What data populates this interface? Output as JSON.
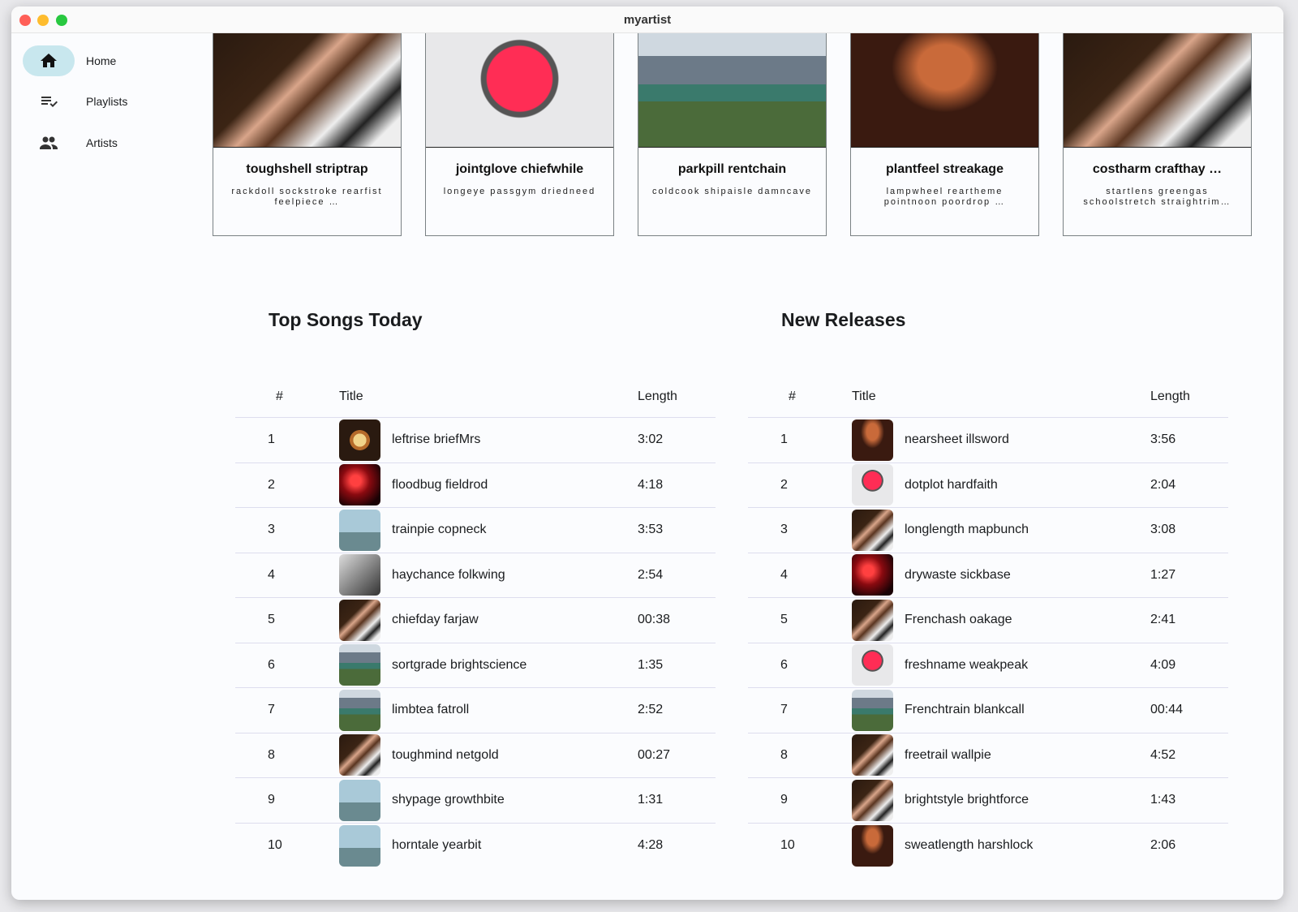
{
  "window": {
    "title": "myartist"
  },
  "sidebar": {
    "items": [
      {
        "label": "Home",
        "icon": "home-icon",
        "active": true
      },
      {
        "label": "Playlists",
        "icon": "playlist-check-icon"
      },
      {
        "label": "Artists",
        "icon": "people-icon"
      }
    ]
  },
  "cards": [
    {
      "title": "toughshell striptrap",
      "subtitle": "rackdoll sockstroke rearfist feelpiece …",
      "image": "piano"
    },
    {
      "title": "jointglove chiefwhile",
      "subtitle": "longeye passgym driedneed",
      "image": "heart"
    },
    {
      "title": "parkpill rentchain",
      "subtitle": "coldcook shipaisle damncave",
      "image": "city"
    },
    {
      "title": "plantfeel streakage",
      "subtitle": "lampwheel reartheme pointnoon poordrop …",
      "image": "yoga"
    },
    {
      "title": "costharm crafthay …",
      "subtitle": "startlens greengas schoolstretch straightrim…",
      "image": "piano"
    }
  ],
  "top_songs": {
    "title": "Top Songs Today",
    "headers": {
      "num": "#",
      "title": "Title",
      "length": "Length"
    },
    "rows": [
      {
        "num": "1",
        "title": "leftrise briefMrs",
        "length": "3:02",
        "image": "coffee"
      },
      {
        "num": "2",
        "title": "floodbug fieldrod",
        "length": "4:18",
        "image": "concert"
      },
      {
        "num": "3",
        "title": "trainpie copneck",
        "length": "3:53",
        "image": "runner"
      },
      {
        "num": "4",
        "title": "haychance folkwing",
        "length": "2:54",
        "image": "portrait"
      },
      {
        "num": "5",
        "title": "chiefday farjaw",
        "length": "00:38",
        "image": "piano"
      },
      {
        "num": "6",
        "title": "sortgrade brightscience",
        "length": "1:35",
        "image": "city"
      },
      {
        "num": "7",
        "title": "limbtea fatroll",
        "length": "2:52",
        "image": "city"
      },
      {
        "num": "8",
        "title": "toughmind netgold",
        "length": "00:27",
        "image": "piano"
      },
      {
        "num": "9",
        "title": "shypage growthbite",
        "length": "1:31",
        "image": "runner"
      },
      {
        "num": "10",
        "title": "horntale yearbit",
        "length": "4:28",
        "image": "runner"
      }
    ]
  },
  "new_releases": {
    "title": "New Releases",
    "headers": {
      "num": "#",
      "title": "Title",
      "length": "Length"
    },
    "rows": [
      {
        "num": "1",
        "title": "nearsheet illsword",
        "length": "3:56",
        "image": "yoga"
      },
      {
        "num": "2",
        "title": "dotplot hardfaith",
        "length": "2:04",
        "image": "heart"
      },
      {
        "num": "3",
        "title": "longlength mapbunch",
        "length": "3:08",
        "image": "piano"
      },
      {
        "num": "4",
        "title": "drywaste sickbase",
        "length": "1:27",
        "image": "concert"
      },
      {
        "num": "5",
        "title": "Frenchash oakage",
        "length": "2:41",
        "image": "piano"
      },
      {
        "num": "6",
        "title": "freshname weakpeak",
        "length": "4:09",
        "image": "heart"
      },
      {
        "num": "7",
        "title": "Frenchtrain blankcall",
        "length": "00:44",
        "image": "city"
      },
      {
        "num": "8",
        "title": "freetrail wallpie",
        "length": "4:52",
        "image": "piano"
      },
      {
        "num": "9",
        "title": "brightstyle brightforce",
        "length": "1:43",
        "image": "piano"
      },
      {
        "num": "10",
        "title": "sweatlength harshlock",
        "length": "2:06",
        "image": "yoga"
      }
    ]
  },
  "colors": {
    "nav_active": "#c8e7ee",
    "close": "#ff5f57",
    "minimize": "#febc2e",
    "zoom": "#28c840"
  }
}
